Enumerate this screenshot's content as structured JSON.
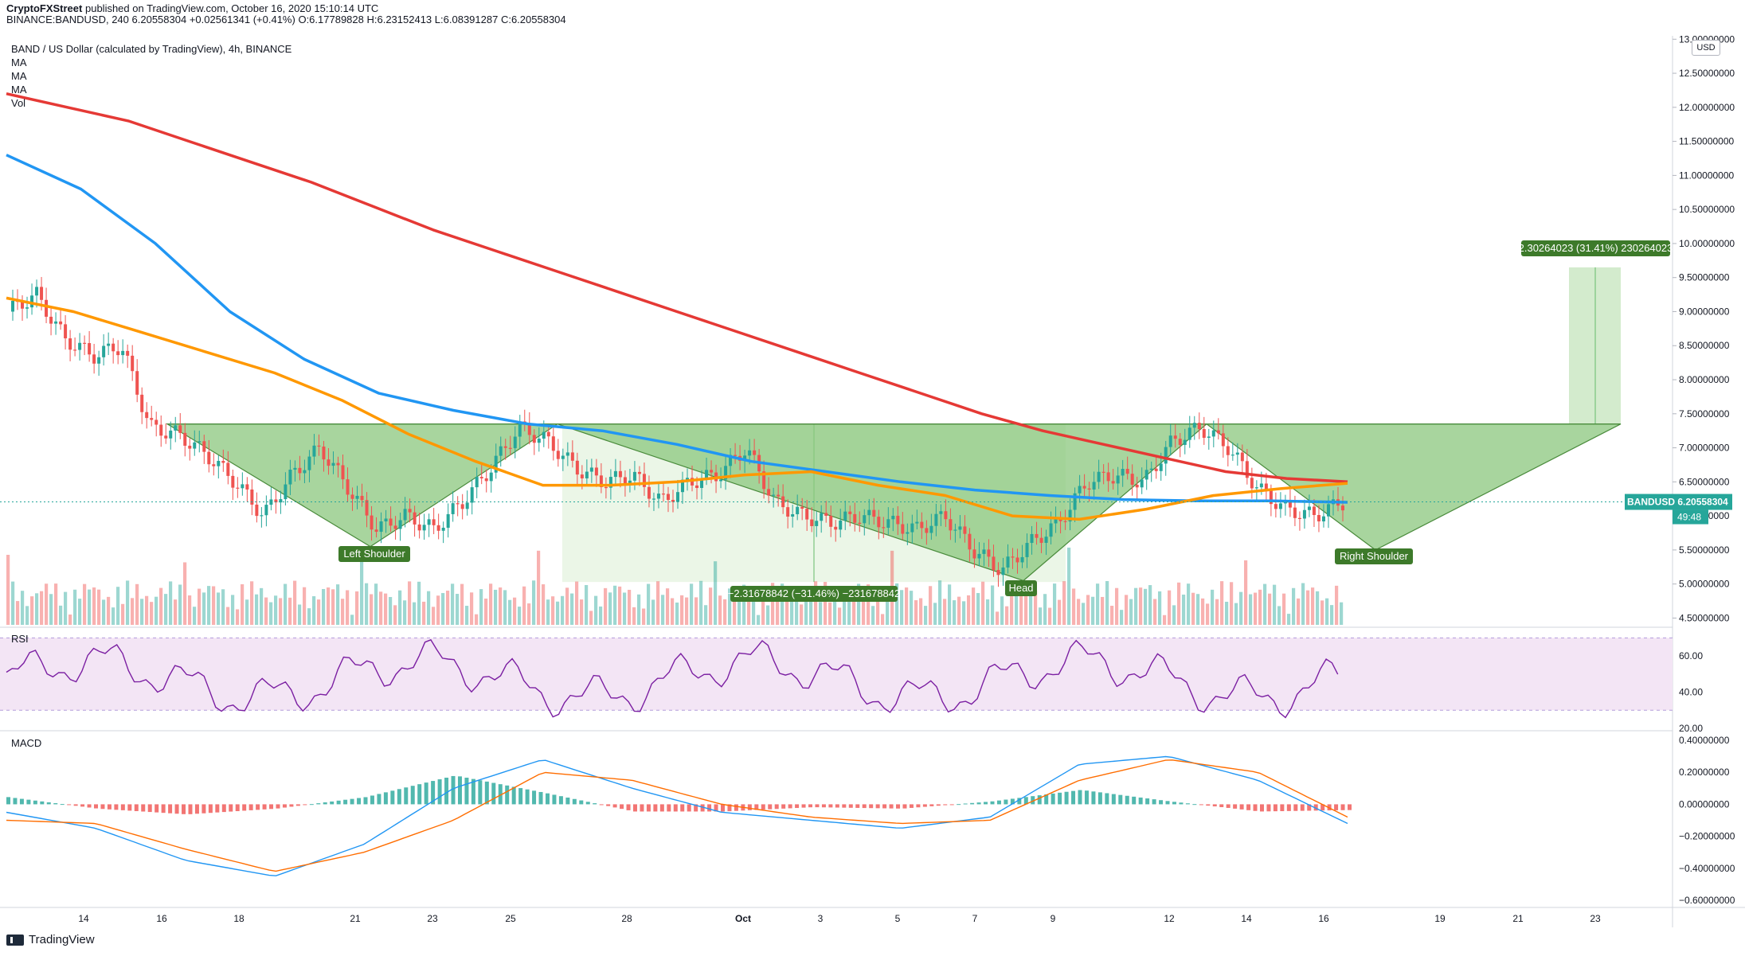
{
  "header": {
    "author": "CryptoFXStreet",
    "published": "published on TradingView.com, October 16, 2020 15:10:14 UTC",
    "symbol": "BINANCE:BANDUSD, 240",
    "price": "6.20558304",
    "change": "+0.02561341 (+0.41%)",
    "open": "O:6.17789828",
    "high": "H:6.23152413",
    "low": "L:6.08391287",
    "close": "C:6.20558304"
  },
  "legend": {
    "title": "BAND / US Dollar (calculated by TradingView), 4h, BINANCE",
    "items": [
      "MA",
      "MA",
      "MA",
      "Vol"
    ]
  },
  "currency": "USD",
  "footer": {
    "brand": "TradingView"
  },
  "colors": {
    "up": "#26a69a",
    "down": "#ef5350",
    "ma_red": "#e53935",
    "ma_blue": "#2196f3",
    "ma_orange": "#ff9800",
    "pattern": "#8bc77e",
    "label_green": "#3d7a2a",
    "rsi_line": "#7b1fa2",
    "macd_line": "#2196f3",
    "signal_line": "#ff6d00"
  },
  "chart_data": [
    {
      "type": "line",
      "title": "BAND / US Dollar (calculated by TradingView), 4h, BINANCE",
      "x_ticks": [
        "14",
        "16",
        "18",
        "21",
        "23",
        "25",
        "28",
        "Oct",
        "3",
        "5",
        "7",
        "9",
        "12",
        "14",
        "16",
        "19",
        "21",
        "23"
      ],
      "y_ticks": [
        "4.50000000",
        "5.00000000",
        "5.50000000",
        "6.00000000",
        "6.50000000",
        "7.00000000",
        "7.50000000",
        "8.00000000",
        "8.50000000",
        "9.00000000",
        "9.50000000",
        "10.00000000",
        "10.50000000",
        "11.00000000",
        "11.50000000",
        "12.00000000",
        "12.50000000",
        "13.00000000"
      ],
      "ylim": [
        4.4,
        13.05
      ],
      "candles_close_approx": [
        9.0,
        9.25,
        8.6,
        8.35,
        8.5,
        7.3,
        7.2,
        6.9,
        6.5,
        6.0,
        6.6,
        7.0,
        6.4,
        5.8,
        6.0,
        5.8,
        6.2,
        6.7,
        7.3,
        7.1,
        6.7,
        6.5,
        6.6,
        6.2,
        6.5,
        6.6,
        7.0,
        6.2,
        6.0,
        5.9,
        6.0,
        5.9,
        5.8,
        6.0,
        5.5,
        5.2,
        5.6,
        5.9,
        6.5,
        6.6,
        6.5,
        7.1,
        7.3,
        7.0,
        6.4,
        6.1,
        6.0,
        6.2
      ],
      "series": [
        {
          "name": "MA (red)",
          "values": [
            12.2,
            12.0,
            11.8,
            11.5,
            11.2,
            10.9,
            10.55,
            10.2,
            9.9,
            9.6,
            9.3,
            9.0,
            8.7,
            8.4,
            8.1,
            7.8,
            7.5,
            7.25,
            7.05,
            6.85,
            6.65,
            6.55,
            6.5
          ]
        },
        {
          "name": "MA (blue)",
          "values": [
            11.3,
            10.8,
            10.0,
            9.0,
            8.3,
            7.8,
            7.55,
            7.35,
            7.25,
            7.05,
            6.8,
            6.65,
            6.5,
            6.38,
            6.3,
            6.24,
            6.22,
            6.22,
            6.2
          ]
        },
        {
          "name": "MA (orange)",
          "values": [
            9.2,
            9.0,
            8.7,
            8.4,
            8.1,
            7.7,
            7.2,
            6.8,
            6.45,
            6.45,
            6.5,
            6.6,
            6.65,
            6.45,
            6.3,
            6.0,
            5.95,
            6.1,
            6.3,
            6.4,
            6.48
          ]
        }
      ],
      "annotations": [
        "Left Shoulder",
        "Head",
        "Right Shoulder",
        "−2.31678842 (−31.46%) −231678842",
        "2.30264023 (31.41%) 230264023"
      ],
      "price_label": "BANDUSD",
      "price_label_value": "6.20558304",
      "countdown": "49:48"
    },
    {
      "type": "line",
      "title": "RSI",
      "y_ticks": [
        "20.00",
        "40.00",
        "60.00"
      ],
      "ylim": [
        20,
        75
      ],
      "bands": [
        30,
        70
      ]
    },
    {
      "type": "bar",
      "title": "MACD",
      "y_ticks": [
        "−0.60000000",
        "−0.40000000",
        "−0.20000000",
        "0.00000000",
        "0.20000000",
        "0.40000000"
      ],
      "ylim": [
        -0.62,
        0.45
      ],
      "series": [
        {
          "name": "MACD",
          "values": [
            -0.05,
            -0.15,
            -0.35,
            -0.45,
            -0.25,
            0.1,
            0.28,
            0.1,
            -0.05,
            -0.1,
            -0.15,
            -0.08,
            0.25,
            0.3,
            0.15,
            -0.12
          ]
        },
        {
          "name": "Signal",
          "values": [
            -0.1,
            -0.12,
            -0.28,
            -0.42,
            -0.3,
            -0.1,
            0.2,
            0.15,
            0.0,
            -0.08,
            -0.12,
            -0.1,
            0.15,
            0.28,
            0.2,
            -0.08
          ]
        }
      ]
    }
  ]
}
